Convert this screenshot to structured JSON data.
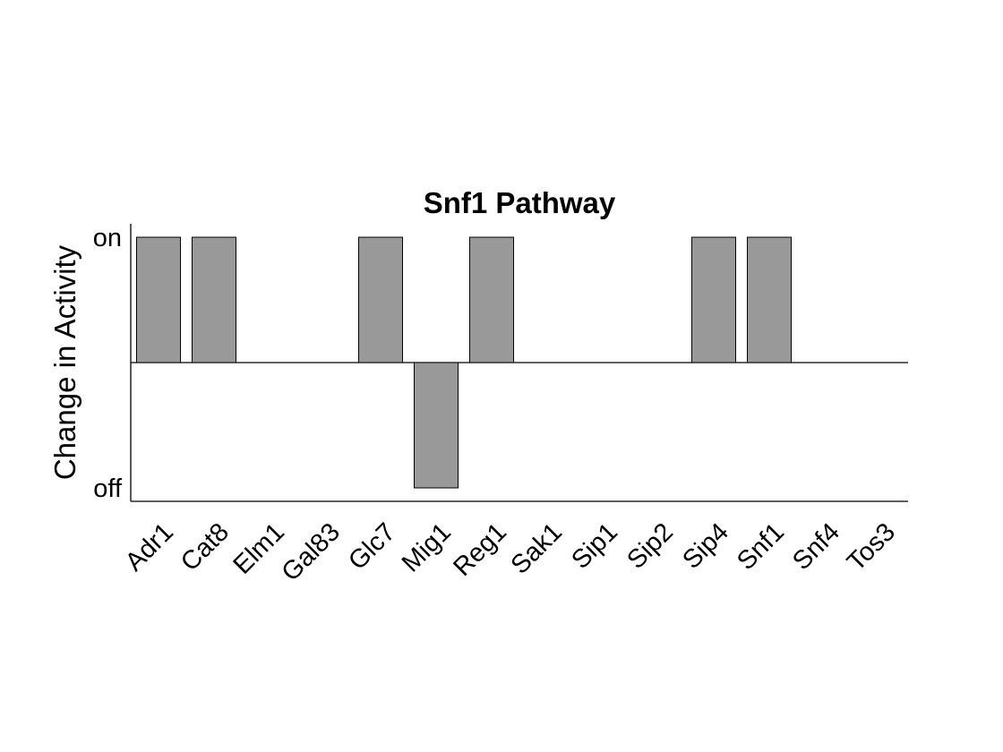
{
  "chart_data": {
    "type": "bar",
    "title": "Snf1 Pathway",
    "xlabel": "",
    "ylabel": "Change in Activity",
    "ylim": [
      -1,
      1
    ],
    "yticks": [
      {
        "value": 1,
        "label": "on"
      },
      {
        "value": -1,
        "label": "off"
      }
    ],
    "categories": [
      "Adr1",
      "Cat8",
      "Elm1",
      "Gal83",
      "Glc7",
      "Mig1",
      "Reg1",
      "Sak1",
      "Sip1",
      "Sip2",
      "Sip4",
      "Snf1",
      "Snf4",
      "Tos3"
    ],
    "values": [
      1,
      1,
      0,
      0,
      1,
      -1,
      1,
      0,
      0,
      0,
      1,
      1,
      0,
      0
    ],
    "grid": false,
    "legend": "none",
    "bar_color": "#999999",
    "bar_edge_color": "#000000"
  }
}
